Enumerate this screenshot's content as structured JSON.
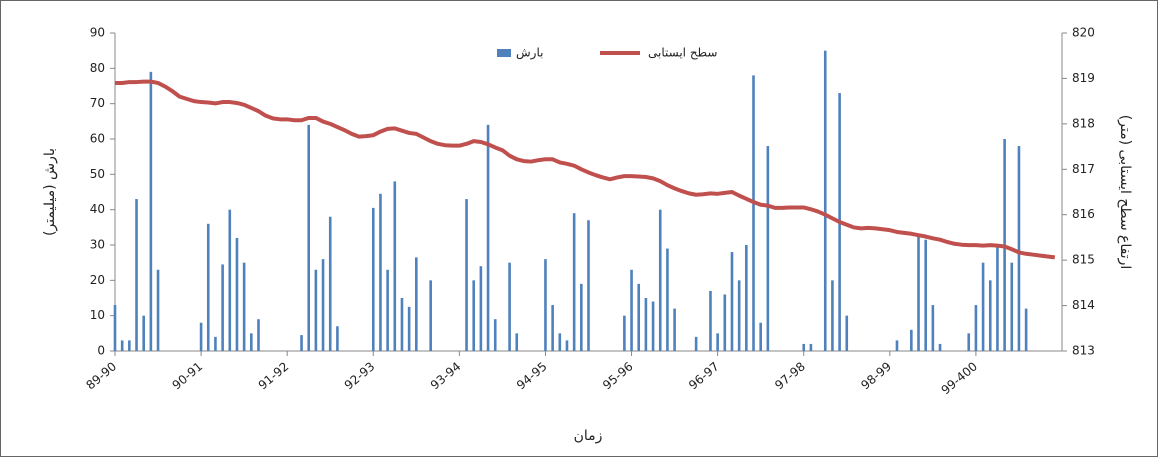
{
  "chart_data": {
    "type": "bar-line",
    "legend_bar": "بارش",
    "legend_line": "سطح ایستابی",
    "ylabel": "بارش (میلیمتر)",
    "y2label": "ارتفاع سطح ایستابی (متر)",
    "xlabel": "زمان",
    "categories": [
      "89-90",
      null,
      null,
      null,
      null,
      null,
      null,
      null,
      null,
      null,
      null,
      null,
      "90-91",
      null,
      null,
      null,
      null,
      null,
      null,
      null,
      null,
      null,
      null,
      null,
      "91-92",
      null,
      null,
      null,
      null,
      null,
      null,
      null,
      null,
      null,
      null,
      null,
      "92-93",
      null,
      null,
      null,
      null,
      null,
      null,
      null,
      null,
      null,
      null,
      null,
      "93-94",
      null,
      null,
      null,
      null,
      null,
      null,
      null,
      null,
      null,
      null,
      null,
      "94-95",
      null,
      null,
      null,
      null,
      null,
      null,
      null,
      null,
      null,
      null,
      null,
      "95-96",
      null,
      null,
      null,
      null,
      null,
      null,
      null,
      null,
      null,
      null,
      null,
      "96-97",
      null,
      null,
      null,
      null,
      null,
      null,
      null,
      null,
      null,
      null,
      null,
      "97-98",
      null,
      null,
      null,
      null,
      null,
      null,
      null,
      null,
      null,
      null,
      null,
      "98-99",
      null,
      null,
      null,
      null,
      null,
      null,
      null,
      null,
      null,
      null,
      null,
      "99-400",
      null,
      null,
      null,
      null,
      null,
      null,
      null,
      null,
      null,
      null,
      null
    ],
    "series": [
      {
        "name": "بارش",
        "type": "bar",
        "color": "#4f81bd",
        "values": [
          13,
          3,
          3,
          43,
          10,
          79,
          23,
          0,
          0,
          0,
          0,
          0,
          8,
          36,
          4,
          24.5,
          40,
          32,
          25,
          5,
          9,
          0,
          0,
          0,
          0,
          0,
          4.5,
          64,
          23,
          26,
          38,
          7,
          0,
          0,
          0,
          0,
          40.5,
          44.5,
          23,
          48,
          15,
          12.5,
          26.5,
          0,
          20,
          0,
          0,
          0,
          0,
          43,
          20,
          24,
          64,
          9,
          0,
          25,
          5,
          0,
          0,
          0,
          26,
          13,
          5,
          3,
          39,
          19,
          37,
          0,
          0,
          0,
          0,
          10,
          23,
          19,
          15,
          14,
          40,
          29,
          12,
          0,
          0,
          4,
          0,
          17,
          5,
          16,
          28,
          20,
          30,
          78,
          8,
          58,
          0,
          0,
          0,
          0,
          2,
          2,
          0,
          85,
          20,
          73,
          10,
          0,
          0,
          0,
          0,
          0,
          0,
          3,
          0,
          6,
          33,
          31.5,
          13,
          2,
          0,
          0,
          0,
          5,
          13,
          25,
          20,
          30,
          60,
          25,
          58,
          12,
          0,
          0,
          0,
          0
        ]
      },
      {
        "name": "سطح ایستابی",
        "type": "line",
        "axis": "y2",
        "color": "#c0504d",
        "values": [
          818.9,
          818.9,
          818.92,
          818.92,
          818.93,
          818.93,
          818.9,
          818.82,
          818.72,
          818.6,
          818.55,
          818.5,
          818.48,
          818.47,
          818.45,
          818.48,
          818.48,
          818.46,
          818.42,
          818.35,
          818.28,
          818.18,
          818.12,
          818.1,
          818.1,
          818.08,
          818.08,
          818.13,
          818.13,
          818.05,
          818.0,
          817.93,
          817.86,
          817.78,
          817.72,
          817.73,
          817.75,
          817.83,
          817.89,
          817.9,
          817.85,
          817.8,
          817.78,
          817.7,
          817.62,
          817.56,
          817.53,
          817.52,
          817.52,
          817.56,
          817.62,
          817.6,
          817.55,
          817.48,
          817.42,
          817.3,
          817.22,
          817.18,
          817.17,
          817.2,
          817.22,
          817.22,
          817.15,
          817.12,
          817.08,
          817.0,
          816.93,
          816.87,
          816.82,
          816.78,
          816.82,
          816.85,
          816.85,
          816.84,
          816.83,
          816.8,
          816.74,
          816.65,
          816.58,
          816.52,
          816.47,
          816.44,
          816.45,
          816.47,
          816.46,
          816.48,
          816.5,
          816.42,
          816.35,
          816.28,
          816.22,
          816.2,
          816.15,
          816.15,
          816.16,
          816.16,
          816.16,
          816.12,
          816.07,
          816.0,
          815.92,
          815.84,
          815.78,
          815.72,
          815.7,
          815.71,
          815.7,
          815.68,
          815.66,
          815.62,
          815.6,
          815.58,
          815.55,
          815.52,
          815.48,
          815.45,
          815.4,
          815.36,
          815.34,
          815.33,
          815.33,
          815.32,
          815.33,
          815.32,
          815.3,
          815.24,
          815.17,
          815.14,
          815.12,
          815.1,
          815.08,
          815.06
        ]
      }
    ],
    "ylim": [
      0,
      90
    ],
    "yticks": [
      0,
      10,
      20,
      30,
      40,
      50,
      60,
      70,
      80,
      90
    ],
    "y2lim": [
      813,
      820
    ],
    "y2ticks": [
      813,
      814,
      815,
      816,
      817,
      818,
      819,
      820
    ]
  }
}
